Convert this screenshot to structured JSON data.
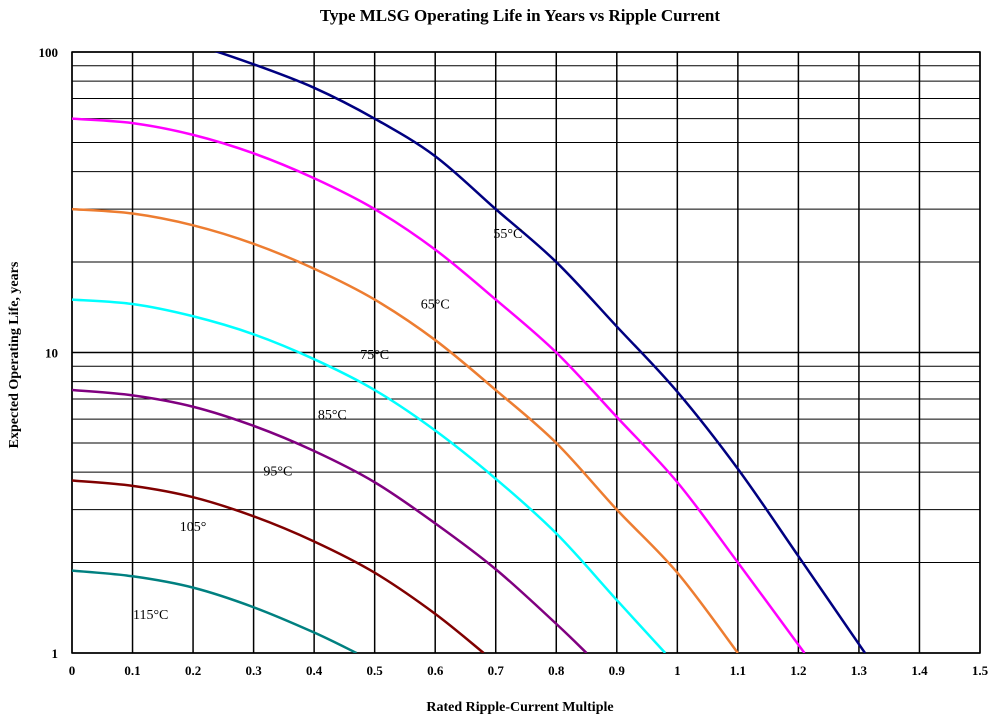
{
  "chart_data": {
    "type": "line",
    "title": "Type MLSG Operating Life in Years vs Ripple Current",
    "xlabel": "Rated Ripple-Current Multiple",
    "ylabel": "Expected Operating Life, years",
    "xlim": [
      0,
      1.5
    ],
    "ylim": [
      1,
      100
    ],
    "yscale": "log",
    "grid": true,
    "x_ticks": [
      "0",
      "0.1",
      "0.2",
      "0.3",
      "0.4",
      "0.5",
      "0.6",
      "0.7",
      "0.8",
      "0.9",
      "1",
      "1.1",
      "1.2",
      "1.3",
      "1.4",
      "1.5"
    ],
    "y_ticks": [
      "1",
      "10",
      "100"
    ],
    "series": [
      {
        "name": "55°C",
        "label": "55°C",
        "color": "#000080",
        "x": [
          0,
          0.1,
          0.2,
          0.3,
          0.4,
          0.5,
          0.6,
          0.7,
          0.8,
          0.9,
          1.0,
          1.1,
          1.2,
          1.31
        ],
        "y": [
          120,
          117,
          106,
          91,
          76,
          60,
          45,
          30,
          20,
          12.2,
          7.4,
          4.1,
          2.1,
          1.0
        ]
      },
      {
        "name": "65°C",
        "label": "65°C",
        "color": "#ff00ff",
        "x": [
          0,
          0.1,
          0.2,
          0.3,
          0.4,
          0.5,
          0.6,
          0.7,
          0.8,
          0.9,
          1.0,
          1.1,
          1.21
        ],
        "y": [
          60,
          58,
          53,
          46,
          38,
          30,
          22,
          15,
          10,
          6.1,
          3.7,
          2.0,
          1.0
        ]
      },
      {
        "name": "75°C",
        "label": "75°C",
        "color": "#ed7d31",
        "x": [
          0,
          0.1,
          0.2,
          0.3,
          0.4,
          0.5,
          0.6,
          0.7,
          0.8,
          0.9,
          1.0,
          1.1
        ],
        "y": [
          30,
          29,
          26.5,
          23,
          19,
          15,
          11,
          7.5,
          5.0,
          3.0,
          1.85,
          1.0
        ]
      },
      {
        "name": "85°C",
        "label": "85°C",
        "color": "#00ffff",
        "x": [
          0,
          0.1,
          0.2,
          0.3,
          0.4,
          0.5,
          0.6,
          0.7,
          0.8,
          0.9,
          0.98
        ],
        "y": [
          15,
          14.5,
          13.2,
          11.5,
          9.5,
          7.5,
          5.5,
          3.8,
          2.5,
          1.5,
          1.0
        ]
      },
      {
        "name": "95°C",
        "label": "95°C",
        "color": "#800080",
        "x": [
          0,
          0.1,
          0.2,
          0.3,
          0.4,
          0.5,
          0.6,
          0.7,
          0.8,
          0.85
        ],
        "y": [
          7.5,
          7.2,
          6.6,
          5.7,
          4.7,
          3.7,
          2.7,
          1.9,
          1.25,
          1.0
        ]
      },
      {
        "name": "105°",
        "label": "105°",
        "color": "#800000",
        "x": [
          0,
          0.1,
          0.2,
          0.3,
          0.4,
          0.5,
          0.6,
          0.68
        ],
        "y": [
          3.75,
          3.6,
          3.3,
          2.85,
          2.35,
          1.85,
          1.35,
          1.0
        ]
      },
      {
        "name": "115°C",
        "label": "115°C",
        "color": "#008080",
        "x": [
          0,
          0.1,
          0.2,
          0.3,
          0.4,
          0.47
        ],
        "y": [
          1.88,
          1.8,
          1.65,
          1.42,
          1.17,
          1.0
        ]
      }
    ]
  }
}
